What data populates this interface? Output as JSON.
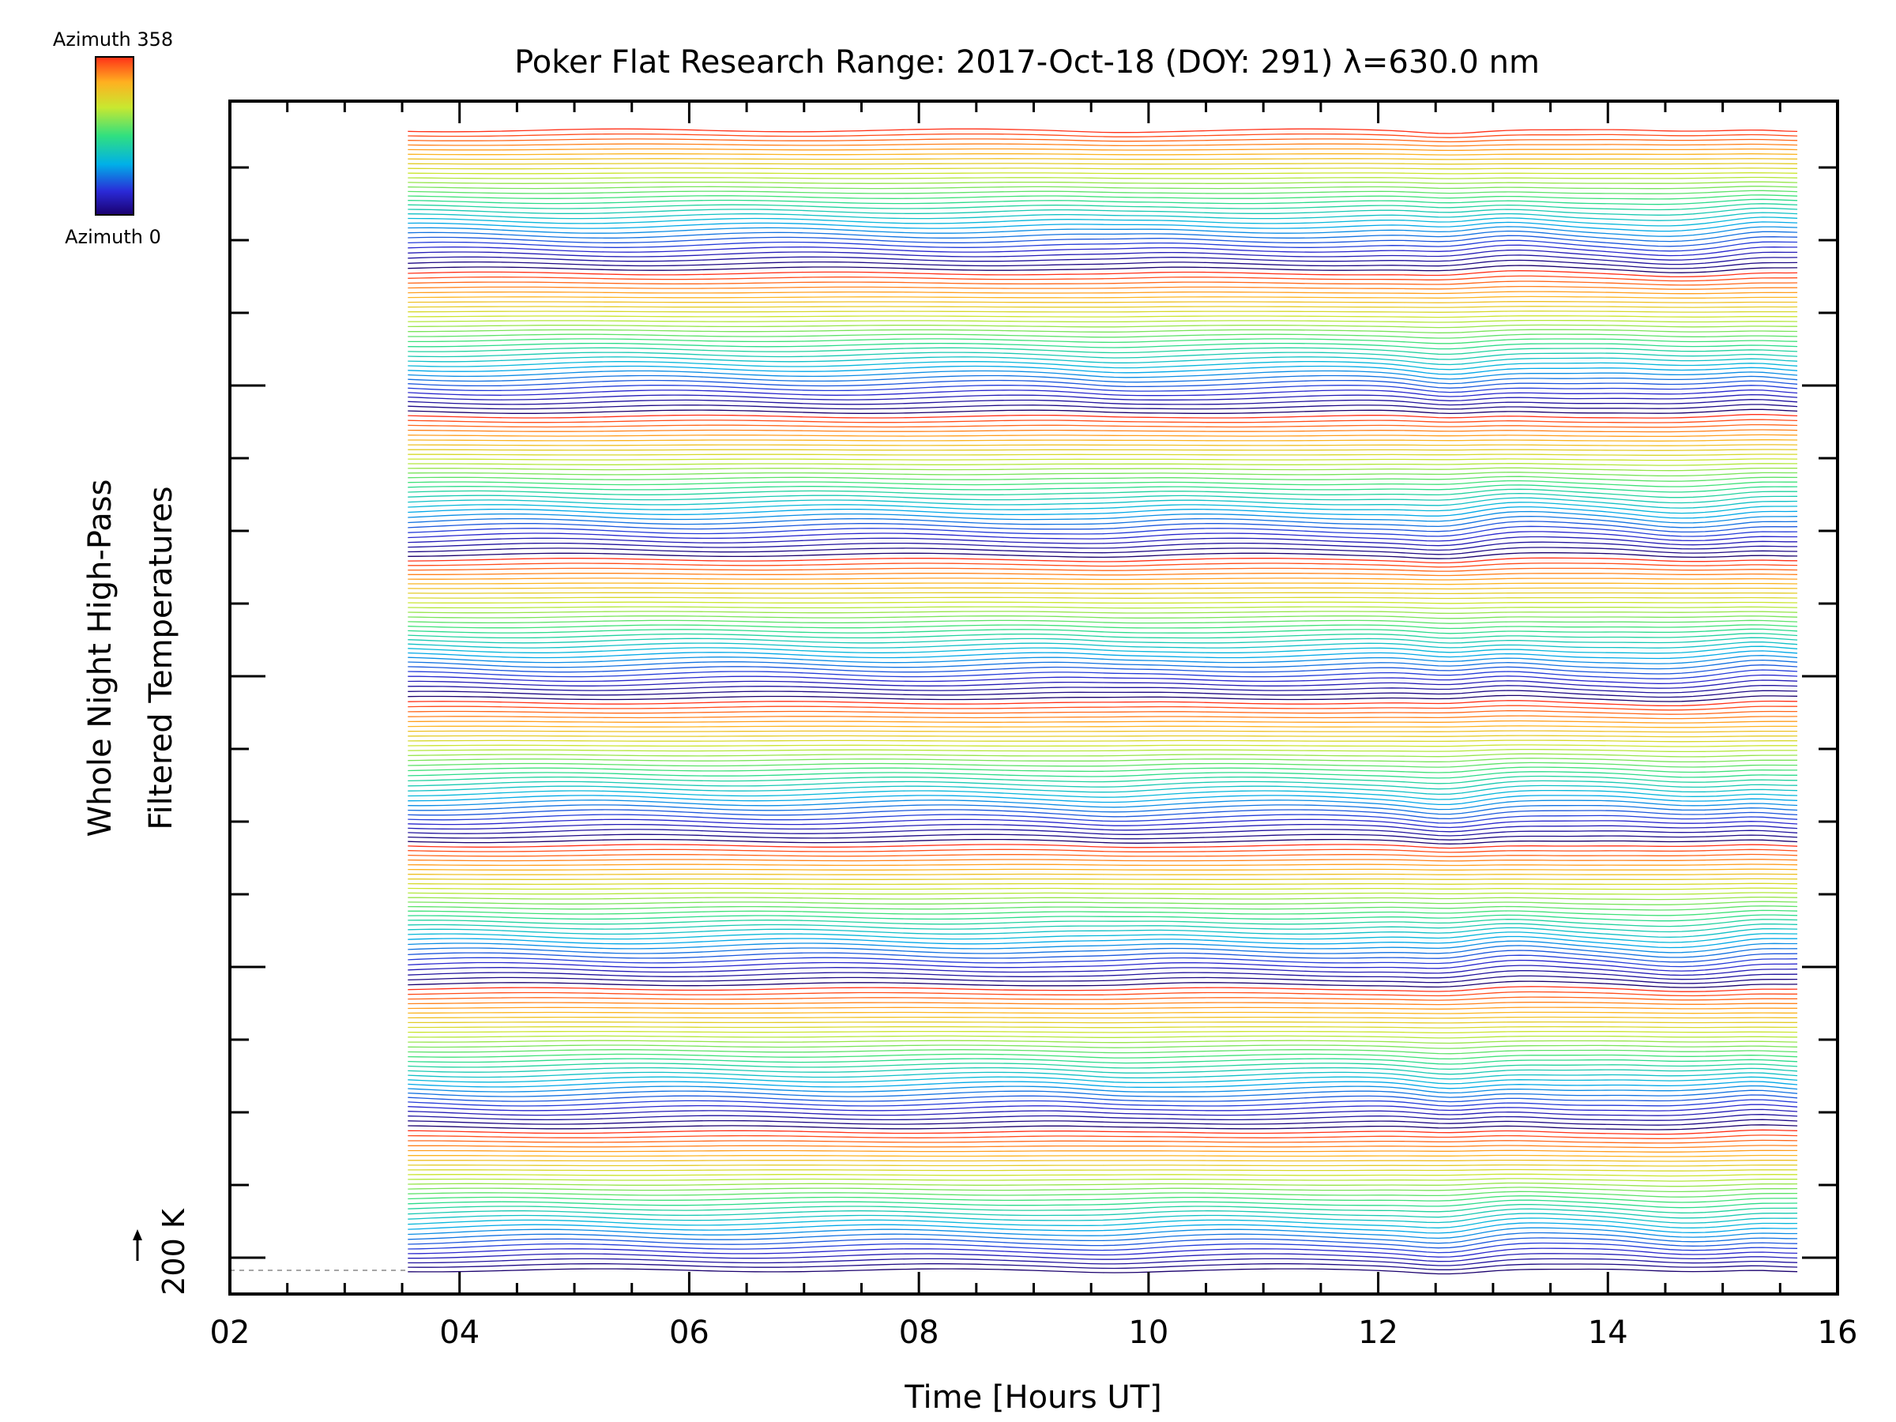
{
  "chart_data": {
    "type": "line",
    "title": "Poker Flat Research Range: 2017-Oct-18 (DOY: 291) λ=630.0 nm",
    "xlabel": "Time [Hours UT]",
    "ylabel_line1": "Whole Night High-Pass",
    "ylabel_line2": "Filtered Temperatures",
    "scale_label": "200 K",
    "xlim": [
      2,
      16
    ],
    "xticks": [
      "02",
      "04",
      "06",
      "08",
      "10",
      "12",
      "14",
      "16"
    ],
    "colorbar": {
      "top_label": "Azimuth 358",
      "bottom_label": "Azimuth 0",
      "min": 0,
      "max": 358
    },
    "data_range_hours": [
      3.55,
      15.65
    ],
    "series_per_group": 30,
    "group_count": 8,
    "grid": false,
    "legend": "top-left colorbar"
  }
}
